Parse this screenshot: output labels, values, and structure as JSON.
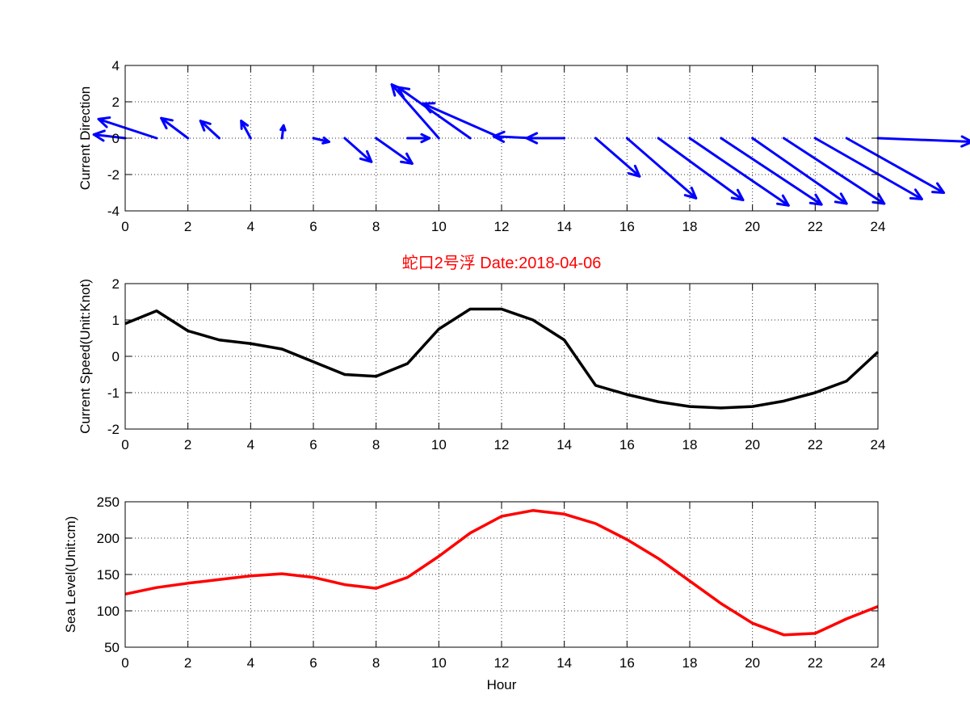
{
  "colors": {
    "direction": "#0000ff",
    "speed": "#000000",
    "level": "#ff0000",
    "title": "#ff0000"
  },
  "chart_data": [
    {
      "type": "quiver",
      "ylabel": "Current Direction",
      "xlim": [
        0,
        24
      ],
      "ylim": [
        -4,
        4
      ],
      "xticks": [
        0,
        2,
        4,
        6,
        8,
        10,
        12,
        14,
        16,
        18,
        20,
        22,
        24
      ],
      "yticks": [
        -4,
        -2,
        0,
        2,
        4
      ],
      "x": [
        0,
        1,
        2,
        3,
        4,
        5,
        6,
        7,
        8,
        9,
        10,
        11,
        12,
        13,
        14,
        15,
        16,
        17,
        18,
        19,
        20,
        21,
        22,
        23,
        24
      ],
      "u": [
        -1.0,
        -1.85,
        -0.85,
        -0.6,
        -0.3,
        0.05,
        0.5,
        0.85,
        1.15,
        0.7,
        -1.5,
        -2.3,
        -2.5,
        -1.25,
        -1.2,
        1.4,
        2.2,
        2.7,
        3.15,
        3.2,
        3.0,
        3.2,
        3.4,
        3.1,
        3.0
      ],
      "v": [
        0.2,
        1.05,
        1.1,
        0.95,
        0.95,
        0.7,
        -0.2,
        -1.3,
        -1.4,
        0.0,
        2.95,
        2.8,
        1.9,
        0.1,
        0.0,
        -2.1,
        -3.3,
        -3.4,
        -3.7,
        -3.65,
        -3.6,
        -3.6,
        -3.35,
        -3.0,
        -0.2
      ]
    },
    {
      "type": "line",
      "title": "蛇口2号浮 Date:2018-04-06",
      "ylabel": "Current Speed(Unit:Knot)",
      "xlim": [
        0,
        24
      ],
      "ylim": [
        -2,
        2
      ],
      "xticks": [
        0,
        2,
        4,
        6,
        8,
        10,
        12,
        14,
        16,
        18,
        20,
        22,
        24
      ],
      "yticks": [
        -2,
        -1,
        0,
        1,
        2
      ],
      "series": [
        {
          "x": [
            0,
            1,
            2,
            3,
            4,
            5,
            6,
            7,
            8,
            9,
            10,
            11,
            12,
            13,
            14,
            15,
            16,
            17,
            18,
            19,
            20,
            21,
            22,
            23,
            24
          ],
          "values": [
            0.9,
            1.25,
            0.7,
            0.45,
            0.35,
            0.2,
            -0.15,
            -0.5,
            -0.55,
            -0.2,
            0.75,
            1.3,
            1.3,
            1.0,
            0.45,
            -0.8,
            -1.05,
            -1.25,
            -1.38,
            -1.42,
            -1.38,
            -1.23,
            -1.0,
            -0.68,
            0.12
          ]
        }
      ]
    },
    {
      "type": "line",
      "xlabel": "Hour",
      "ylabel": "Sea Level(Unit:cm)",
      "xlim": [
        0,
        24
      ],
      "ylim": [
        50,
        250
      ],
      "xticks": [
        0,
        2,
        4,
        6,
        8,
        10,
        12,
        14,
        16,
        18,
        20,
        22,
        24
      ],
      "yticks": [
        50,
        100,
        150,
        200,
        250
      ],
      "series": [
        {
          "x": [
            0,
            1,
            2,
            3,
            4,
            5,
            6,
            7,
            8,
            9,
            10,
            11,
            12,
            13,
            14,
            15,
            16,
            17,
            18,
            19,
            20,
            21,
            22,
            23,
            24
          ],
          "values": [
            123,
            132,
            138,
            143,
            148,
            151,
            146,
            136,
            131,
            146,
            175,
            207,
            230,
            238,
            233,
            220,
            198,
            172,
            141,
            110,
            83,
            67,
            69,
            89,
            106
          ]
        }
      ]
    }
  ]
}
